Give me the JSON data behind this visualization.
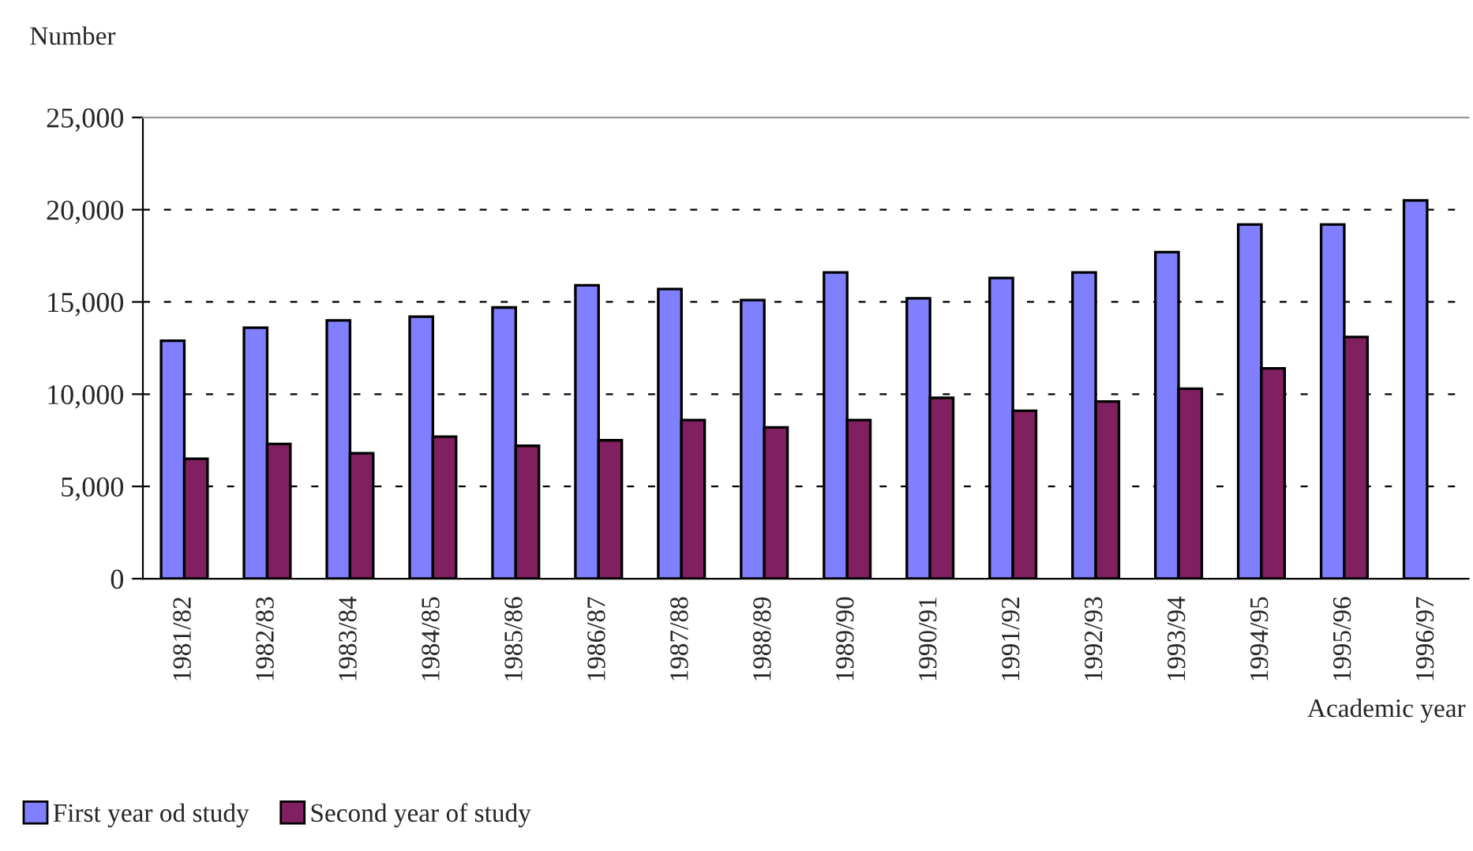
{
  "chart_data": {
    "type": "bar",
    "ylabel": "Number",
    "xlabel": "Academic year",
    "categories": [
      "1981/82",
      "1982/83",
      "1983/84",
      "1984/85",
      "1985/86",
      "1986/87",
      "1987/88",
      "1988/89",
      "1989/90",
      "1990/91",
      "1991/92",
      "1992/93",
      "1993/94",
      "1994/95",
      "1995/96",
      "1996/97"
    ],
    "series": [
      {
        "name": "First year od study",
        "color": "#8080ff",
        "values": [
          12900,
          13600,
          14000,
          14200,
          14700,
          15900,
          15700,
          15100,
          16600,
          15200,
          16300,
          16600,
          17700,
          19200,
          19200,
          20500
        ]
      },
      {
        "name": "Second year of study",
        "color": "#802060",
        "values": [
          6500,
          7300,
          6800,
          7700,
          7200,
          7500,
          8600,
          8200,
          8600,
          9800,
          9100,
          9600,
          10300,
          11400,
          13100,
          null
        ]
      }
    ],
    "ylim": [
      0,
      25000
    ],
    "yticks": [
      {
        "value": 0,
        "label": "0"
      },
      {
        "value": 5000,
        "label": "5,000"
      },
      {
        "value": 10000,
        "label": "10,000"
      },
      {
        "value": 15000,
        "label": "15,000"
      },
      {
        "value": 20000,
        "label": "20,000"
      },
      {
        "value": 25000,
        "label": "25,000"
      }
    ],
    "grid": "y",
    "legend": "bottom left"
  }
}
